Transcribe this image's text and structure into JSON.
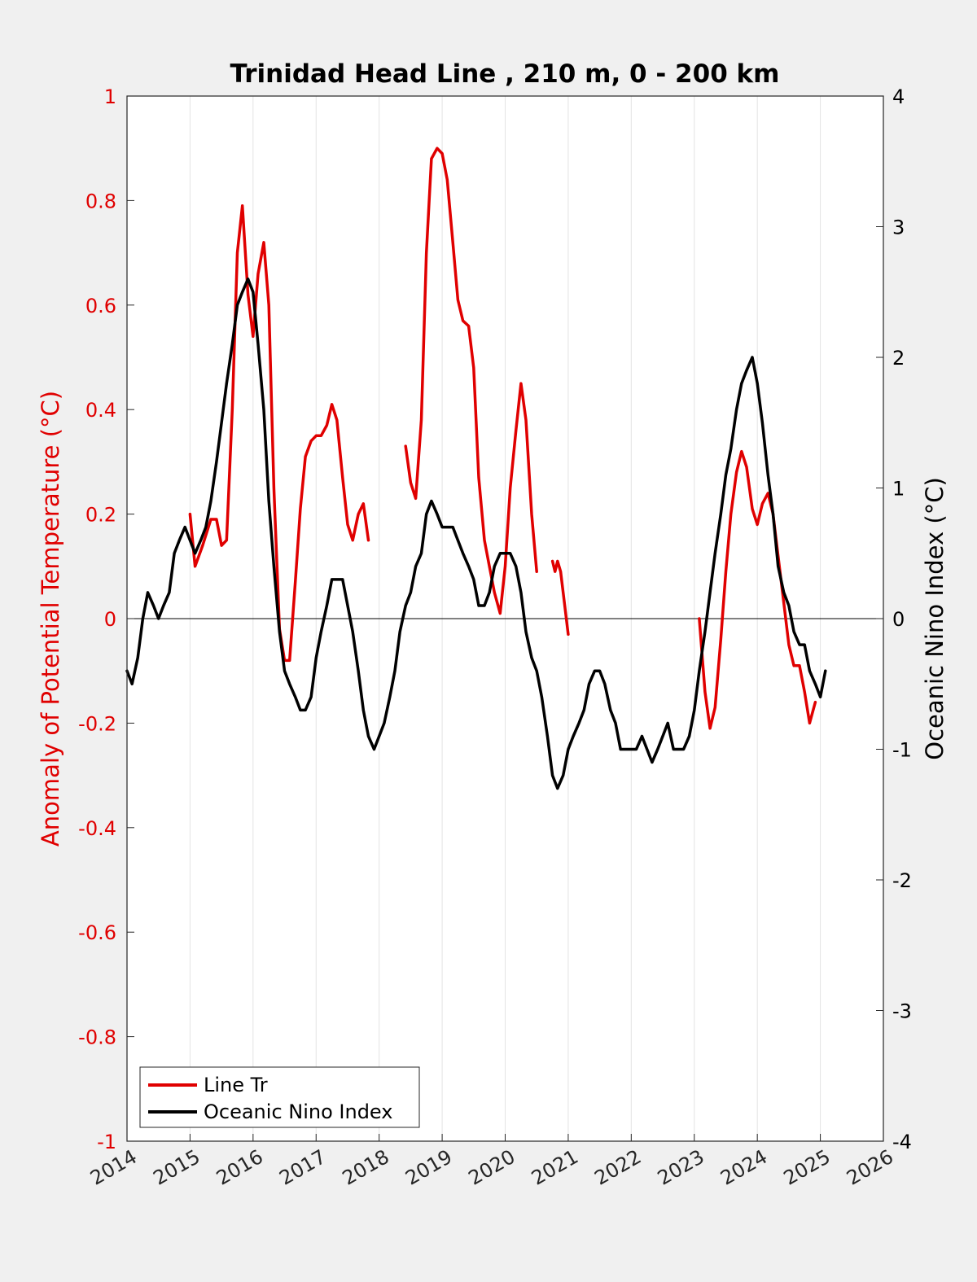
{
  "chart_data": {
    "type": "line",
    "title": "Trinidad Head Line , 210 m, 0 - 200 km",
    "ylabel_left": "Anomaly of Potential Temperature (°C)",
    "ylabel_right": "Oceanic Nino Index (°C)",
    "xlabel": "",
    "xlim": [
      2014,
      2026
    ],
    "ylim_left": [
      -1,
      1
    ],
    "ylim_right": [
      -4,
      4
    ],
    "xticks": [
      "2014",
      "2015",
      "2016",
      "2017",
      "2018",
      "2019",
      "2020",
      "2021",
      "2022",
      "2023",
      "2024",
      "2025",
      "2026"
    ],
    "yticks_left": [
      "1",
      "0.8",
      "0.6",
      "0.4",
      "0.2",
      "0",
      "-0.2",
      "-0.4",
      "-0.6",
      "-0.8",
      "-1"
    ],
    "yticks_right": [
      "4",
      "3",
      "2",
      "1",
      "0",
      "-1",
      "-2",
      "-3",
      "-4"
    ],
    "grid": "vertical",
    "legend": "bottom-left",
    "colors": {
      "line_tr": "#e00000",
      "oni": "#000000",
      "left_axis": "#e00000",
      "right_axis": "#000000"
    },
    "series": [
      {
        "name": "Line Tr",
        "axis": "left",
        "segments": [
          [
            [
              2015.0,
              0.2
            ],
            [
              2015.08,
              0.1
            ],
            [
              2015.2,
              0.14
            ],
            [
              2015.33,
              0.19
            ],
            [
              2015.42,
              0.19
            ],
            [
              2015.5,
              0.14
            ],
            [
              2015.58,
              0.15
            ],
            [
              2015.67,
              0.4
            ],
            [
              2015.75,
              0.7
            ],
            [
              2015.83,
              0.79
            ],
            [
              2015.92,
              0.62
            ],
            [
              2016.0,
              0.54
            ],
            [
              2016.08,
              0.66
            ],
            [
              2016.17,
              0.72
            ],
            [
              2016.25,
              0.6
            ],
            [
              2016.33,
              0.25
            ],
            [
              2016.42,
              -0.02
            ],
            [
              2016.5,
              -0.08
            ],
            [
              2016.58,
              -0.08
            ],
            [
              2016.67,
              0.07
            ],
            [
              2016.75,
              0.21
            ],
            [
              2016.83,
              0.31
            ],
            [
              2016.92,
              0.34
            ],
            [
              2017.0,
              0.35
            ],
            [
              2017.08,
              0.35
            ],
            [
              2017.17,
              0.37
            ],
            [
              2017.25,
              0.41
            ],
            [
              2017.33,
              0.38
            ],
            [
              2017.42,
              0.27
            ],
            [
              2017.5,
              0.18
            ],
            [
              2017.58,
              0.15
            ],
            [
              2017.67,
              0.2
            ],
            [
              2017.75,
              0.22
            ],
            [
              2017.83,
              0.15
            ]
          ],
          [
            [
              2018.42,
              0.33
            ],
            [
              2018.5,
              0.26
            ],
            [
              2018.58,
              0.23
            ],
            [
              2018.67,
              0.38
            ],
            [
              2018.75,
              0.7
            ],
            [
              2018.83,
              0.88
            ],
            [
              2018.92,
              0.9
            ],
            [
              2019.0,
              0.89
            ],
            [
              2019.08,
              0.84
            ],
            [
              2019.17,
              0.72
            ],
            [
              2019.25,
              0.61
            ],
            [
              2019.33,
              0.57
            ],
            [
              2019.42,
              0.56
            ],
            [
              2019.5,
              0.48
            ],
            [
              2019.58,
              0.27
            ],
            [
              2019.67,
              0.15
            ],
            [
              2019.75,
              0.1
            ],
            [
              2019.83,
              0.05
            ],
            [
              2019.92,
              0.01
            ],
            [
              2020.0,
              0.1
            ],
            [
              2020.08,
              0.25
            ],
            [
              2020.17,
              0.36
            ],
            [
              2020.25,
              0.45
            ],
            [
              2020.33,
              0.38
            ],
            [
              2020.42,
              0.2
            ],
            [
              2020.5,
              0.09
            ]
          ],
          [
            [
              2020.75,
              0.11
            ],
            [
              2020.79,
              0.09
            ],
            [
              2020.83,
              0.11
            ],
            [
              2020.88,
              0.09
            ],
            [
              2020.92,
              0.05
            ],
            [
              2021.0,
              -0.03
            ]
          ],
          [
            [
              2023.08,
              0.0
            ],
            [
              2023.17,
              -0.14
            ],
            [
              2023.25,
              -0.21
            ],
            [
              2023.33,
              -0.17
            ],
            [
              2023.42,
              -0.04
            ],
            [
              2023.5,
              0.09
            ],
            [
              2023.58,
              0.2
            ],
            [
              2023.67,
              0.28
            ],
            [
              2023.75,
              0.32
            ],
            [
              2023.83,
              0.29
            ],
            [
              2023.92,
              0.21
            ],
            [
              2024.0,
              0.18
            ],
            [
              2024.08,
              0.22
            ],
            [
              2024.17,
              0.24
            ],
            [
              2024.25,
              0.2
            ],
            [
              2024.33,
              0.12
            ],
            [
              2024.42,
              0.03
            ],
            [
              2024.5,
              -0.05
            ],
            [
              2024.58,
              -0.09
            ],
            [
              2024.67,
              -0.09
            ],
            [
              2024.75,
              -0.14
            ],
            [
              2024.83,
              -0.2
            ],
            [
              2024.92,
              -0.16
            ]
          ]
        ]
      },
      {
        "name": "Oceanic Nino Index",
        "axis": "right",
        "segments": [
          [
            [
              2014.0,
              -0.4
            ],
            [
              2014.08,
              -0.5
            ],
            [
              2014.17,
              -0.3
            ],
            [
              2014.25,
              0.0
            ],
            [
              2014.33,
              0.2
            ],
            [
              2014.42,
              0.1
            ],
            [
              2014.5,
              0.0
            ],
            [
              2014.58,
              0.1
            ],
            [
              2014.67,
              0.2
            ],
            [
              2014.75,
              0.5
            ],
            [
              2014.83,
              0.6
            ],
            [
              2014.92,
              0.7
            ],
            [
              2015.0,
              0.6
            ],
            [
              2015.08,
              0.5
            ],
            [
              2015.17,
              0.6
            ],
            [
              2015.25,
              0.7
            ],
            [
              2015.33,
              0.9
            ],
            [
              2015.42,
              1.2
            ],
            [
              2015.5,
              1.5
            ],
            [
              2015.58,
              1.8
            ],
            [
              2015.67,
              2.1
            ],
            [
              2015.75,
              2.4
            ],
            [
              2015.83,
              2.5
            ],
            [
              2015.92,
              2.6
            ],
            [
              2016.0,
              2.5
            ],
            [
              2016.08,
              2.1
            ],
            [
              2016.17,
              1.6
            ],
            [
              2016.25,
              0.9
            ],
            [
              2016.33,
              0.4
            ],
            [
              2016.42,
              -0.1
            ],
            [
              2016.5,
              -0.4
            ],
            [
              2016.58,
              -0.5
            ],
            [
              2016.67,
              -0.6
            ],
            [
              2016.75,
              -0.7
            ],
            [
              2016.83,
              -0.7
            ],
            [
              2016.92,
              -0.6
            ],
            [
              2017.0,
              -0.3
            ],
            [
              2017.08,
              -0.1
            ],
            [
              2017.17,
              0.1
            ],
            [
              2017.25,
              0.3
            ],
            [
              2017.33,
              0.3
            ],
            [
              2017.42,
              0.3
            ],
            [
              2017.5,
              0.1
            ],
            [
              2017.58,
              -0.1
            ],
            [
              2017.67,
              -0.4
            ],
            [
              2017.75,
              -0.7
            ],
            [
              2017.83,
              -0.9
            ],
            [
              2017.92,
              -1.0
            ],
            [
              2018.0,
              -0.9
            ],
            [
              2018.08,
              -0.8
            ],
            [
              2018.17,
              -0.6
            ],
            [
              2018.25,
              -0.4
            ],
            [
              2018.33,
              -0.1
            ],
            [
              2018.42,
              0.1
            ],
            [
              2018.5,
              0.2
            ],
            [
              2018.58,
              0.4
            ],
            [
              2018.67,
              0.5
            ],
            [
              2018.75,
              0.8
            ],
            [
              2018.83,
              0.9
            ],
            [
              2018.92,
              0.8
            ],
            [
              2019.0,
              0.7
            ],
            [
              2019.08,
              0.7
            ],
            [
              2019.17,
              0.7
            ],
            [
              2019.25,
              0.6
            ],
            [
              2019.33,
              0.5
            ],
            [
              2019.42,
              0.4
            ],
            [
              2019.5,
              0.3
            ],
            [
              2019.58,
              0.1
            ],
            [
              2019.67,
              0.1
            ],
            [
              2019.75,
              0.2
            ],
            [
              2019.83,
              0.4
            ],
            [
              2019.92,
              0.5
            ],
            [
              2020.0,
              0.5
            ],
            [
              2020.08,
              0.5
            ],
            [
              2020.17,
              0.4
            ],
            [
              2020.25,
              0.2
            ],
            [
              2020.33,
              -0.1
            ],
            [
              2020.42,
              -0.3
            ],
            [
              2020.5,
              -0.4
            ],
            [
              2020.58,
              -0.6
            ],
            [
              2020.67,
              -0.9
            ],
            [
              2020.75,
              -1.2
            ],
            [
              2020.83,
              -1.3
            ],
            [
              2020.92,
              -1.2
            ],
            [
              2021.0,
              -1.0
            ],
            [
              2021.08,
              -0.9
            ],
            [
              2021.17,
              -0.8
            ],
            [
              2021.25,
              -0.7
            ],
            [
              2021.33,
              -0.5
            ],
            [
              2021.42,
              -0.4
            ],
            [
              2021.5,
              -0.4
            ],
            [
              2021.58,
              -0.5
            ],
            [
              2021.67,
              -0.7
            ],
            [
              2021.75,
              -0.8
            ],
            [
              2021.83,
              -1.0
            ],
            [
              2021.92,
              -1.0
            ],
            [
              2022.0,
              -1.0
            ],
            [
              2022.08,
              -1.0
            ],
            [
              2022.17,
              -0.9
            ],
            [
              2022.25,
              -1.0
            ],
            [
              2022.33,
              -1.1
            ],
            [
              2022.42,
              -1.0
            ],
            [
              2022.5,
              -0.9
            ],
            [
              2022.58,
              -0.8
            ],
            [
              2022.67,
              -1.0
            ],
            [
              2022.75,
              -1.0
            ],
            [
              2022.83,
              -1.0
            ],
            [
              2022.92,
              -0.9
            ],
            [
              2023.0,
              -0.7
            ],
            [
              2023.08,
              -0.4
            ],
            [
              2023.17,
              -0.1
            ],
            [
              2023.25,
              0.2
            ],
            [
              2023.33,
              0.5
            ],
            [
              2023.42,
              0.8
            ],
            [
              2023.5,
              1.1
            ],
            [
              2023.58,
              1.3
            ],
            [
              2023.67,
              1.6
            ],
            [
              2023.75,
              1.8
            ],
            [
              2023.83,
              1.9
            ],
            [
              2023.92,
              2.0
            ],
            [
              2024.0,
              1.8
            ],
            [
              2024.08,
              1.5
            ],
            [
              2024.17,
              1.1
            ],
            [
              2024.25,
              0.8
            ],
            [
              2024.33,
              0.4
            ],
            [
              2024.42,
              0.2
            ],
            [
              2024.5,
              0.1
            ],
            [
              2024.58,
              -0.1
            ],
            [
              2024.67,
              -0.2
            ],
            [
              2024.75,
              -0.2
            ],
            [
              2024.83,
              -0.4
            ],
            [
              2024.92,
              -0.5
            ],
            [
              2025.0,
              -0.6
            ],
            [
              2025.08,
              -0.4
            ]
          ]
        ]
      }
    ]
  },
  "legend": {
    "items": [
      {
        "label": "Line Tr",
        "color": "#e00000"
      },
      {
        "label": "Oceanic Nino Index",
        "color": "#000000"
      }
    ]
  }
}
